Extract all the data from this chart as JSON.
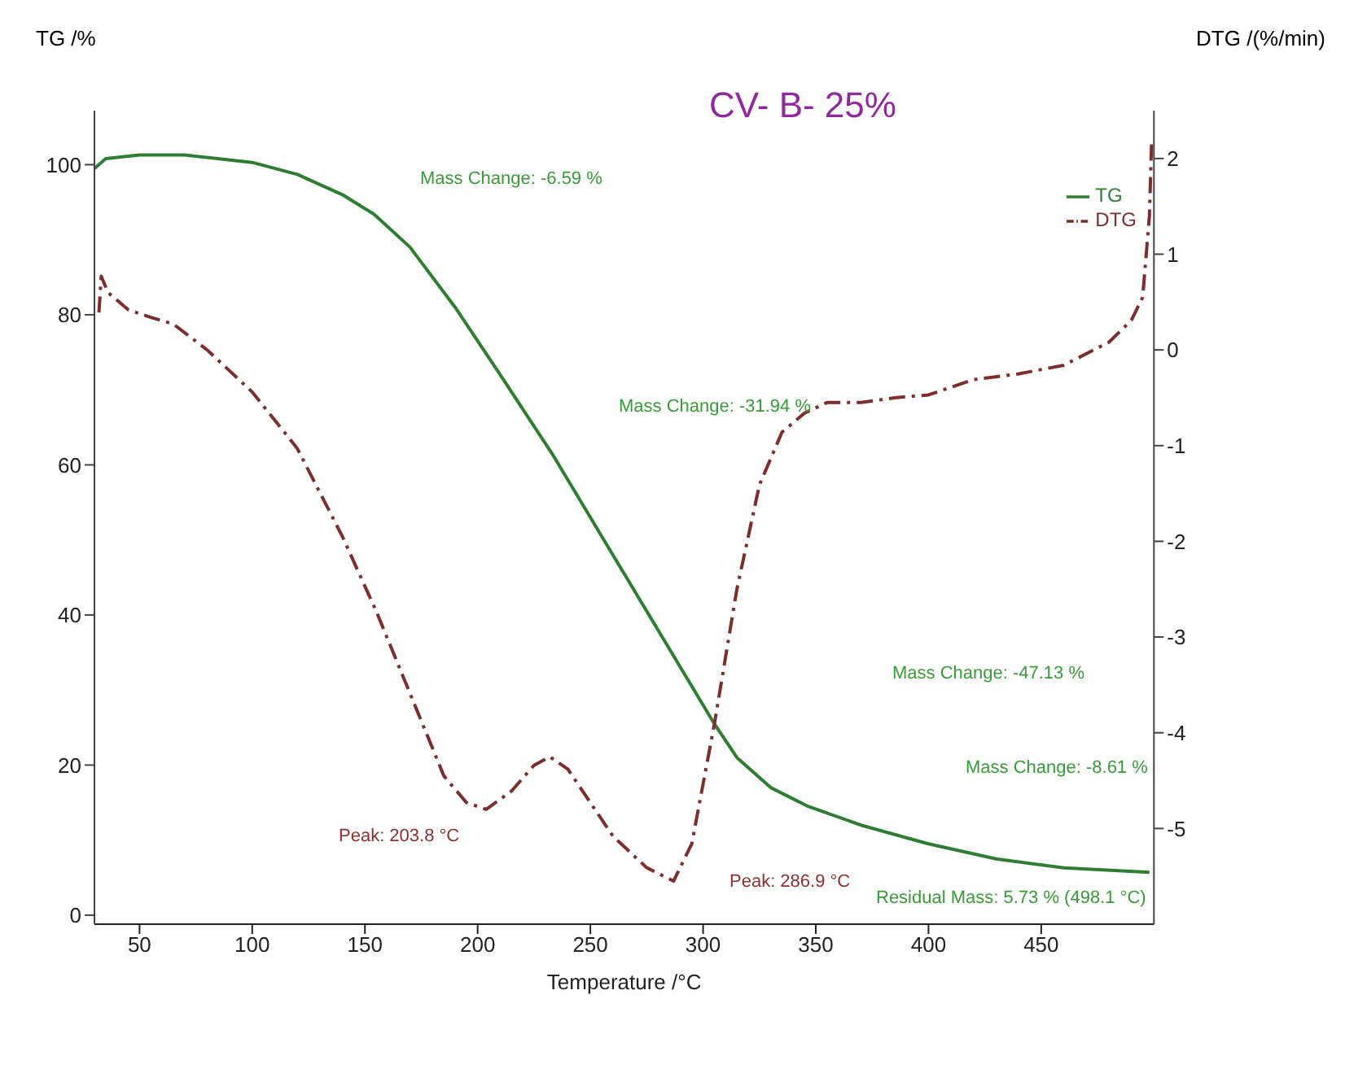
{
  "chart_data": {
    "type": "line",
    "title": "CV- B- 25%",
    "xlabel": "Temperature /°C",
    "ylabel": "TG /%",
    "y2label": "DTG /(%/min)",
    "series": [
      {
        "name": "TG",
        "color": "#2e7d32",
        "line_style": "solid",
        "x": [
          30,
          35,
          50,
          70,
          100,
          120,
          140,
          154,
          170,
          190,
          210,
          233,
          250,
          270,
          290,
          305,
          315,
          330,
          346.6,
          370,
          400,
          430,
          460,
          498
        ],
        "values": [
          99.5,
          100.8,
          101.3,
          101.3,
          100.3,
          98.7,
          96,
          93.4,
          89,
          81,
          72,
          61.5,
          53,
          43,
          33,
          25.5,
          21,
          17,
          14.5,
          12,
          9.5,
          7.5,
          6.3,
          5.7
        ]
      },
      {
        "name": "DTG",
        "color": "#7a2e2e",
        "line_style": "dashed",
        "axis": "y2",
        "x": [
          32,
          33,
          36,
          45,
          55,
          65,
          80,
          100,
          120,
          140,
          155,
          170,
          185,
          195,
          203.8,
          215,
          225,
          232,
          240,
          250,
          260,
          275,
          286.9,
          295,
          305,
          315,
          325,
          335,
          345,
          355,
          370,
          385,
          400,
          420,
          440,
          460,
          480,
          490,
          495,
          498,
          499
        ],
        "values": [
          0.39,
          0.77,
          0.6,
          0.42,
          0.34,
          0.27,
          0.0,
          -0.44,
          -1.03,
          -1.95,
          -2.73,
          -3.59,
          -4.45,
          -4.73,
          -4.8,
          -4.61,
          -4.34,
          -4.25,
          -4.38,
          -4.73,
          -5.08,
          -5.41,
          -5.55,
          -5.16,
          -3.91,
          -2.5,
          -1.41,
          -0.86,
          -0.66,
          -0.55,
          -0.55,
          -0.5,
          -0.47,
          -0.31,
          -0.25,
          -0.16,
          0.08,
          0.31,
          0.55,
          1.4,
          2.2
        ]
      }
    ],
    "xlim": [
      30,
      500
    ],
    "xticks": [
      50,
      100,
      150,
      200,
      250,
      300,
      350,
      400,
      450
    ],
    "ylim": [
      -1.2,
      107.2
    ],
    "yticks": [
      0,
      20,
      40,
      60,
      80,
      100
    ],
    "y2lim": [
      -6,
      2.5
    ],
    "y2ticks": [
      2,
      1,
      0,
      -1,
      -2,
      -3,
      -4,
      -5
    ],
    "annotations": [
      "Mass Change: -6.59 %",
      "Mass Change: -31.94 %",
      "Mass Change: -47.13 %",
      "Mass Change: -8.61 %",
      "Residual Mass: 5.73 % (498.1 °C)",
      "Peak: 203.8 °C",
      "Peak: 286.9 °C"
    ],
    "grid": false,
    "legend": "top right",
    "marker": "none"
  }
}
